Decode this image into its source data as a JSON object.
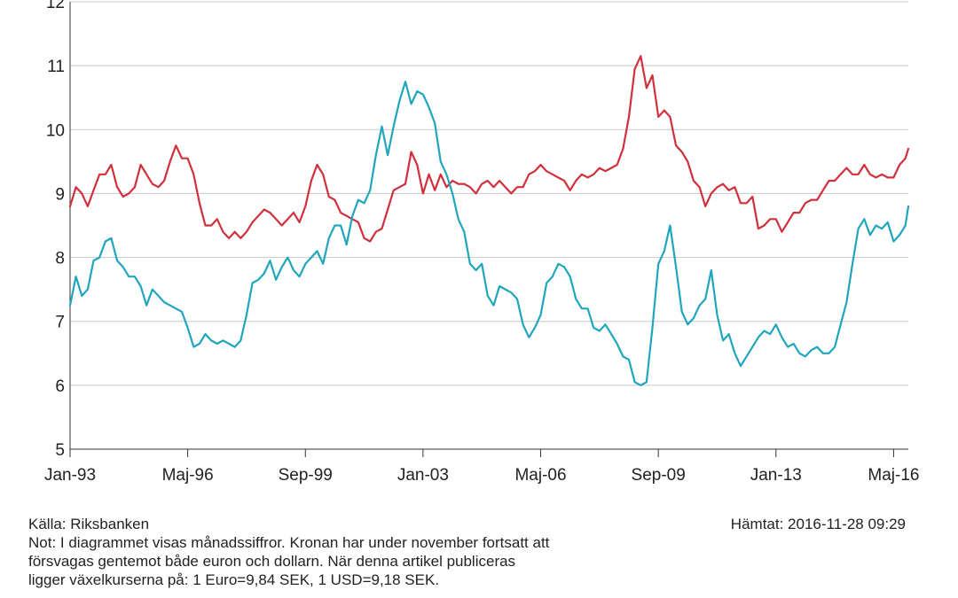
{
  "chart_data": {
    "type": "line",
    "ylim": [
      5,
      12
    ],
    "y_ticks": [
      5,
      6,
      7,
      8,
      9,
      10,
      11,
      12
    ],
    "x_tick_labels": [
      "Jan-93",
      "Maj-96",
      "Sep-99",
      "Jan-03",
      "Maj-06",
      "Sep-09",
      "Jan-13",
      "Maj-16"
    ],
    "x_range_months": [
      "1993-01",
      "2016-10"
    ],
    "grid": "horizontal",
    "legend": "none",
    "series": [
      {
        "color": "#d0303c",
        "points": [
          [
            "1993-01",
            8.8
          ],
          [
            "1993-03",
            9.1
          ],
          [
            "1993-05",
            9.0
          ],
          [
            "1993-07",
            8.8
          ],
          [
            "1993-09",
            9.05
          ],
          [
            "1993-11",
            9.3
          ],
          [
            "1994-01",
            9.3
          ],
          [
            "1994-03",
            9.45
          ],
          [
            "1994-05",
            9.1
          ],
          [
            "1994-07",
            8.95
          ],
          [
            "1994-09",
            9.0
          ],
          [
            "1994-11",
            9.1
          ],
          [
            "1995-01",
            9.45
          ],
          [
            "1995-03",
            9.3
          ],
          [
            "1995-05",
            9.15
          ],
          [
            "1995-07",
            9.1
          ],
          [
            "1995-09",
            9.2
          ],
          [
            "1995-11",
            9.5
          ],
          [
            "1996-01",
            9.75
          ],
          [
            "1996-03",
            9.55
          ],
          [
            "1996-05",
            9.55
          ],
          [
            "1996-07",
            9.3
          ],
          [
            "1996-09",
            8.85
          ],
          [
            "1996-11",
            8.5
          ],
          [
            "1997-01",
            8.5
          ],
          [
            "1997-03",
            8.6
          ],
          [
            "1997-05",
            8.4
          ],
          [
            "1997-07",
            8.3
          ],
          [
            "1997-09",
            8.4
          ],
          [
            "1997-11",
            8.3
          ],
          [
            "1998-01",
            8.4
          ],
          [
            "1998-03",
            8.55
          ],
          [
            "1998-05",
            8.65
          ],
          [
            "1998-07",
            8.75
          ],
          [
            "1998-09",
            8.7
          ],
          [
            "1998-11",
            8.6
          ],
          [
            "1999-01",
            8.5
          ],
          [
            "1999-03",
            8.6
          ],
          [
            "1999-05",
            8.7
          ],
          [
            "1999-07",
            8.55
          ],
          [
            "1999-09",
            8.8
          ],
          [
            "1999-11",
            9.2
          ],
          [
            "2000-01",
            9.45
          ],
          [
            "2000-03",
            9.3
          ],
          [
            "2000-05",
            8.95
          ],
          [
            "2000-07",
            8.9
          ],
          [
            "2000-09",
            8.7
          ],
          [
            "2000-11",
            8.65
          ],
          [
            "2001-01",
            8.6
          ],
          [
            "2001-03",
            8.55
          ],
          [
            "2001-05",
            8.3
          ],
          [
            "2001-07",
            8.25
          ],
          [
            "2001-09",
            8.4
          ],
          [
            "2001-11",
            8.45
          ],
          [
            "2002-01",
            8.75
          ],
          [
            "2002-03",
            9.05
          ],
          [
            "2002-05",
            9.1
          ],
          [
            "2002-07",
            9.15
          ],
          [
            "2002-09",
            9.65
          ],
          [
            "2002-11",
            9.45
          ],
          [
            "2003-01",
            9.0
          ],
          [
            "2003-03",
            9.3
          ],
          [
            "2003-05",
            9.05
          ],
          [
            "2003-07",
            9.3
          ],
          [
            "2003-09",
            9.1
          ],
          [
            "2003-11",
            9.2
          ],
          [
            "2004-01",
            9.15
          ],
          [
            "2004-03",
            9.15
          ],
          [
            "2004-05",
            9.1
          ],
          [
            "2004-07",
            9.0
          ],
          [
            "2004-09",
            9.15
          ],
          [
            "2004-11",
            9.2
          ],
          [
            "2005-01",
            9.1
          ],
          [
            "2005-03",
            9.2
          ],
          [
            "2005-05",
            9.1
          ],
          [
            "2005-07",
            9.0
          ],
          [
            "2005-09",
            9.1
          ],
          [
            "2005-11",
            9.1
          ],
          [
            "2006-01",
            9.3
          ],
          [
            "2006-03",
            9.35
          ],
          [
            "2006-05",
            9.45
          ],
          [
            "2006-07",
            9.35
          ],
          [
            "2006-09",
            9.3
          ],
          [
            "2006-11",
            9.25
          ],
          [
            "2007-01",
            9.2
          ],
          [
            "2007-03",
            9.05
          ],
          [
            "2007-05",
            9.2
          ],
          [
            "2007-07",
            9.3
          ],
          [
            "2007-09",
            9.25
          ],
          [
            "2007-11",
            9.3
          ],
          [
            "2008-01",
            9.4
          ],
          [
            "2008-03",
            9.35
          ],
          [
            "2008-05",
            9.4
          ],
          [
            "2008-07",
            9.45
          ],
          [
            "2008-09",
            9.7
          ],
          [
            "2008-11",
            10.2
          ],
          [
            "2009-01",
            10.95
          ],
          [
            "2009-03",
            11.15
          ],
          [
            "2009-05",
            10.65
          ],
          [
            "2009-07",
            10.85
          ],
          [
            "2009-09",
            10.2
          ],
          [
            "2009-11",
            10.3
          ],
          [
            "2010-01",
            10.2
          ],
          [
            "2010-03",
            9.75
          ],
          [
            "2010-05",
            9.65
          ],
          [
            "2010-07",
            9.5
          ],
          [
            "2010-09",
            9.2
          ],
          [
            "2010-11",
            9.1
          ],
          [
            "2011-01",
            8.8
          ],
          [
            "2011-03",
            9.0
          ],
          [
            "2011-05",
            9.1
          ],
          [
            "2011-07",
            9.15
          ],
          [
            "2011-09",
            9.05
          ],
          [
            "2011-11",
            9.1
          ],
          [
            "2012-01",
            8.85
          ],
          [
            "2012-03",
            8.85
          ],
          [
            "2012-05",
            8.95
          ],
          [
            "2012-07",
            8.45
          ],
          [
            "2012-09",
            8.5
          ],
          [
            "2012-11",
            8.6
          ],
          [
            "2013-01",
            8.6
          ],
          [
            "2013-03",
            8.4
          ],
          [
            "2013-05",
            8.55
          ],
          [
            "2013-07",
            8.7
          ],
          [
            "2013-09",
            8.7
          ],
          [
            "2013-11",
            8.85
          ],
          [
            "2014-01",
            8.9
          ],
          [
            "2014-03",
            8.9
          ],
          [
            "2014-05",
            9.05
          ],
          [
            "2014-07",
            9.2
          ],
          [
            "2014-09",
            9.2
          ],
          [
            "2014-11",
            9.3
          ],
          [
            "2015-01",
            9.4
          ],
          [
            "2015-03",
            9.3
          ],
          [
            "2015-05",
            9.3
          ],
          [
            "2015-07",
            9.45
          ],
          [
            "2015-09",
            9.3
          ],
          [
            "2015-11",
            9.25
          ],
          [
            "2016-01",
            9.3
          ],
          [
            "2016-03",
            9.25
          ],
          [
            "2016-05",
            9.25
          ],
          [
            "2016-07",
            9.45
          ],
          [
            "2016-09",
            9.55
          ],
          [
            "2016-10",
            9.7
          ]
        ]
      },
      {
        "color": "#1fa6bd",
        "points": [
          [
            "1993-01",
            7.25
          ],
          [
            "1993-03",
            7.7
          ],
          [
            "1993-05",
            7.4
          ],
          [
            "1993-07",
            7.5
          ],
          [
            "1993-09",
            7.95
          ],
          [
            "1993-11",
            8.0
          ],
          [
            "1994-01",
            8.25
          ],
          [
            "1994-03",
            8.3
          ],
          [
            "1994-05",
            7.95
          ],
          [
            "1994-07",
            7.85
          ],
          [
            "1994-09",
            7.7
          ],
          [
            "1994-11",
            7.7
          ],
          [
            "1995-01",
            7.55
          ],
          [
            "1995-03",
            7.25
          ],
          [
            "1995-05",
            7.5
          ],
          [
            "1995-07",
            7.4
          ],
          [
            "1995-09",
            7.3
          ],
          [
            "1995-11",
            7.25
          ],
          [
            "1996-01",
            7.2
          ],
          [
            "1996-03",
            7.15
          ],
          [
            "1996-05",
            6.9
          ],
          [
            "1996-07",
            6.6
          ],
          [
            "1996-09",
            6.65
          ],
          [
            "1996-11",
            6.8
          ],
          [
            "1997-01",
            6.7
          ],
          [
            "1997-03",
            6.65
          ],
          [
            "1997-05",
            6.7
          ],
          [
            "1997-07",
            6.65
          ],
          [
            "1997-09",
            6.6
          ],
          [
            "1997-11",
            6.7
          ],
          [
            "1998-01",
            7.1
          ],
          [
            "1998-03",
            7.6
          ],
          [
            "1998-05",
            7.65
          ],
          [
            "1998-07",
            7.75
          ],
          [
            "1998-09",
            7.95
          ],
          [
            "1998-11",
            7.65
          ],
          [
            "1999-01",
            7.85
          ],
          [
            "1999-03",
            8.0
          ],
          [
            "1999-05",
            7.8
          ],
          [
            "1999-07",
            7.7
          ],
          [
            "1999-09",
            7.9
          ],
          [
            "1999-11",
            8.0
          ],
          [
            "2000-01",
            8.1
          ],
          [
            "2000-03",
            7.9
          ],
          [
            "2000-05",
            8.3
          ],
          [
            "2000-07",
            8.5
          ],
          [
            "2000-09",
            8.5
          ],
          [
            "2000-11",
            8.2
          ],
          [
            "2001-01",
            8.65
          ],
          [
            "2001-03",
            8.9
          ],
          [
            "2001-05",
            8.85
          ],
          [
            "2001-07",
            9.05
          ],
          [
            "2001-09",
            9.6
          ],
          [
            "2001-11",
            10.05
          ],
          [
            "2002-01",
            9.6
          ],
          [
            "2002-03",
            10.05
          ],
          [
            "2002-05",
            10.45
          ],
          [
            "2002-07",
            10.75
          ],
          [
            "2002-09",
            10.4
          ],
          [
            "2002-11",
            10.6
          ],
          [
            "2003-01",
            10.55
          ],
          [
            "2003-03",
            10.35
          ],
          [
            "2003-05",
            10.1
          ],
          [
            "2003-07",
            9.5
          ],
          [
            "2003-09",
            9.3
          ],
          [
            "2003-11",
            9.0
          ],
          [
            "2004-01",
            8.6
          ],
          [
            "2004-03",
            8.4
          ],
          [
            "2004-05",
            7.9
          ],
          [
            "2004-07",
            7.8
          ],
          [
            "2004-09",
            7.9
          ],
          [
            "2004-11",
            7.4
          ],
          [
            "2005-01",
            7.25
          ],
          [
            "2005-03",
            7.55
          ],
          [
            "2005-05",
            7.5
          ],
          [
            "2005-07",
            7.45
          ],
          [
            "2005-09",
            7.35
          ],
          [
            "2005-11",
            6.95
          ],
          [
            "2006-01",
            6.75
          ],
          [
            "2006-03",
            6.9
          ],
          [
            "2006-05",
            7.1
          ],
          [
            "2006-07",
            7.6
          ],
          [
            "2006-09",
            7.7
          ],
          [
            "2006-11",
            7.9
          ],
          [
            "2007-01",
            7.85
          ],
          [
            "2007-03",
            7.7
          ],
          [
            "2007-05",
            7.35
          ],
          [
            "2007-07",
            7.2
          ],
          [
            "2007-09",
            7.2
          ],
          [
            "2007-11",
            6.9
          ],
          [
            "2008-01",
            6.85
          ],
          [
            "2008-03",
            6.95
          ],
          [
            "2008-05",
            6.8
          ],
          [
            "2008-07",
            6.65
          ],
          [
            "2008-09",
            6.45
          ],
          [
            "2008-11",
            6.4
          ],
          [
            "2009-01",
            6.05
          ],
          [
            "2009-03",
            6.0
          ],
          [
            "2009-05",
            6.05
          ],
          [
            "2009-07",
            6.9
          ],
          [
            "2009-09",
            7.9
          ],
          [
            "2009-11",
            8.1
          ],
          [
            "2010-01",
            8.5
          ],
          [
            "2010-03",
            7.85
          ],
          [
            "2010-05",
            7.15
          ],
          [
            "2010-07",
            6.95
          ],
          [
            "2010-09",
            7.05
          ],
          [
            "2010-11",
            7.25
          ],
          [
            "2011-01",
            7.35
          ],
          [
            "2011-03",
            7.8
          ],
          [
            "2011-05",
            7.1
          ],
          [
            "2011-07",
            6.7
          ],
          [
            "2011-09",
            6.8
          ],
          [
            "2011-11",
            6.5
          ],
          [
            "2012-01",
            6.3
          ],
          [
            "2012-03",
            6.45
          ],
          [
            "2012-05",
            6.6
          ],
          [
            "2012-07",
            6.75
          ],
          [
            "2012-09",
            6.85
          ],
          [
            "2012-11",
            6.8
          ],
          [
            "2013-01",
            6.95
          ],
          [
            "2013-03",
            6.75
          ],
          [
            "2013-05",
            6.6
          ],
          [
            "2013-07",
            6.65
          ],
          [
            "2013-09",
            6.5
          ],
          [
            "2013-11",
            6.45
          ],
          [
            "2014-01",
            6.55
          ],
          [
            "2014-03",
            6.6
          ],
          [
            "2014-05",
            6.5
          ],
          [
            "2014-07",
            6.5
          ],
          [
            "2014-09",
            6.6
          ],
          [
            "2014-11",
            6.95
          ],
          [
            "2015-01",
            7.3
          ],
          [
            "2015-03",
            7.9
          ],
          [
            "2015-05",
            8.45
          ],
          [
            "2015-07",
            8.6
          ],
          [
            "2015-09",
            8.35
          ],
          [
            "2015-11",
            8.5
          ],
          [
            "2016-01",
            8.45
          ],
          [
            "2016-03",
            8.55
          ],
          [
            "2016-05",
            8.25
          ],
          [
            "2016-07",
            8.35
          ],
          [
            "2016-09",
            8.5
          ],
          [
            "2016-10",
            8.8
          ]
        ]
      }
    ]
  },
  "footer": {
    "source": "Källa: Riksbanken",
    "retrieved": "Hämtat: 2016-11-28 09:29",
    "note_lines": [
      "Not: I diagrammet visas månadssiffror. Kronan har under november fortsatt att",
      "försvagas gentemot både euron och dollarn. När denna artikel publiceras",
      "ligger växelkurserna på: 1 Euro=9,84 SEK, 1 USD=9,18 SEK."
    ]
  }
}
